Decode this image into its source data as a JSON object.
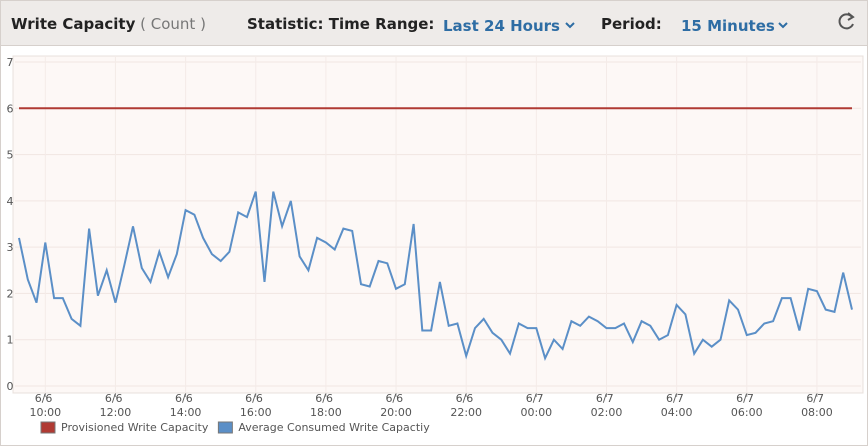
{
  "header": {
    "title": "Write Capacity",
    "unit": "( Count )",
    "statistic_label": "Statistic: Time Range:",
    "time_range": "Last 24 Hours",
    "period_label": "Period:",
    "period": "15 Minutes"
  },
  "chart_data": {
    "type": "line",
    "categories": [
      null,
      null,
      null,
      "6/6 10:00",
      null,
      null,
      null,
      null,
      null,
      null,
      null,
      "6/6 12:00",
      null,
      null,
      null,
      null,
      null,
      null,
      null,
      "6/6 14:00",
      null,
      null,
      null,
      null,
      null,
      null,
      null,
      "6/6 16:00",
      null,
      null,
      null,
      null,
      null,
      null,
      null,
      "6/6 18:00",
      null,
      null,
      null,
      null,
      null,
      null,
      null,
      "6/6 20:00",
      null,
      null,
      null,
      null,
      null,
      null,
      null,
      "6/6 22:00",
      null,
      null,
      null,
      null,
      null,
      null,
      null,
      "6/7 00:00",
      null,
      null,
      null,
      null,
      null,
      null,
      null,
      "6/7 02:00",
      null,
      null,
      null,
      null,
      null,
      null,
      null,
      "6/7 04:00",
      null,
      null,
      null,
      null,
      null,
      null,
      null,
      "6/7 06:00",
      null,
      null,
      null,
      null,
      null,
      null,
      null,
      "6/7 08:00",
      null,
      null,
      null,
      null
    ],
    "series": [
      {
        "name": "Provisioned Write Capacity",
        "color": "#b03a33",
        "values": [
          6,
          6,
          6,
          6,
          6,
          6,
          6,
          6,
          6,
          6,
          6,
          6,
          6,
          6,
          6,
          6,
          6,
          6,
          6,
          6,
          6,
          6,
          6,
          6,
          6,
          6,
          6,
          6,
          6,
          6,
          6,
          6,
          6,
          6,
          6,
          6,
          6,
          6,
          6,
          6,
          6,
          6,
          6,
          6,
          6,
          6,
          6,
          6,
          6,
          6,
          6,
          6,
          6,
          6,
          6,
          6,
          6,
          6,
          6,
          6,
          6,
          6,
          6,
          6,
          6,
          6,
          6,
          6,
          6,
          6,
          6,
          6,
          6,
          6,
          6,
          6,
          6,
          6,
          6,
          6,
          6,
          6,
          6,
          6,
          6,
          6,
          6,
          6,
          6,
          6,
          6,
          6,
          6,
          6,
          6,
          6
        ]
      },
      {
        "name": "Average Consumed Write Capactiy",
        "color": "#5b8fc7",
        "values": [
          3.2,
          2.3,
          1.8,
          3.1,
          1.9,
          1.9,
          1.45,
          1.3,
          3.4,
          1.95,
          2.5,
          1.8,
          2.6,
          3.45,
          2.55,
          2.25,
          2.9,
          2.35,
          2.85,
          3.8,
          3.7,
          3.2,
          2.85,
          2.7,
          2.9,
          3.75,
          3.65,
          4.2,
          2.25,
          4.2,
          3.45,
          4.0,
          2.8,
          2.5,
          3.2,
          3.1,
          2.95,
          3.4,
          3.35,
          2.2,
          2.15,
          2.7,
          2.65,
          2.1,
          2.2,
          3.5,
          1.2,
          1.2,
          2.25,
          1.3,
          1.35,
          0.65,
          1.25,
          1.45,
          1.15,
          1.0,
          0.7,
          1.35,
          1.25,
          1.25,
          0.6,
          1.0,
          0.8,
          1.4,
          1.3,
          1.5,
          1.4,
          1.25,
          1.25,
          1.35,
          0.95,
          1.4,
          1.3,
          1.0,
          1.1,
          1.75,
          1.55,
          0.7,
          1.0,
          0.85,
          1.0,
          1.85,
          1.65,
          1.1,
          1.15,
          1.35,
          1.4,
          1.9,
          1.9,
          1.2,
          2.1,
          2.05,
          1.65,
          1.6,
          2.45,
          1.65
        ]
      }
    ],
    "ylim": [
      0,
      7
    ],
    "yticks": [
      0,
      1,
      2,
      3,
      4,
      5,
      6,
      7
    ],
    "grid": true
  }
}
